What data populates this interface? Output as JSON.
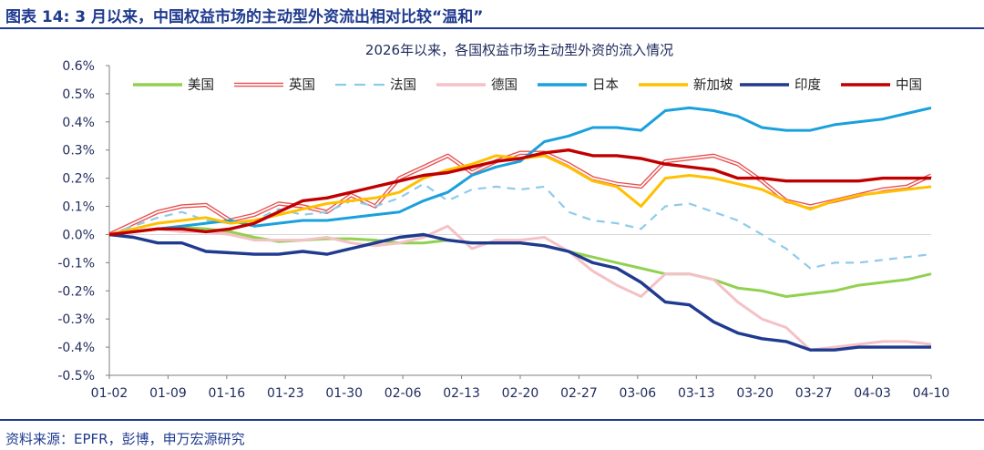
{
  "header": {
    "title": "图表 14: 3 月以来，中国权益市场的主动型外资流出相对比较“温和”"
  },
  "footer": {
    "source": "资料来源：EPFR，彭博，申万宏源研究"
  },
  "chart_data": {
    "type": "line",
    "title": "2026年以来，各国权益市场主动型外资的流入情况",
    "xlabel": "",
    "ylabel": "",
    "ylim": [
      -0.5,
      0.6
    ],
    "yticks": [
      -0.5,
      -0.4,
      -0.3,
      -0.2,
      -0.1,
      0.0,
      0.1,
      0.2,
      0.3,
      0.4,
      0.5,
      0.6
    ],
    "ytick_labels": [
      "-0.5%",
      "-0.4%",
      "-0.3%",
      "-0.2%",
      "-0.1%",
      "0.0%",
      "0.1%",
      "0.2%",
      "0.3%",
      "0.4%",
      "0.5%",
      "0.6%"
    ],
    "x_tick_labels": [
      "01-02",
      "01-09",
      "01-16",
      "01-23",
      "01-30",
      "02-06",
      "02-13",
      "02-20",
      "02-27",
      "03-06",
      "03-13",
      "03-20",
      "03-27",
      "04-03",
      "04-10"
    ],
    "legend_position": "top",
    "series": [
      {
        "name": "美国",
        "color": "#92d050",
        "style": "solid",
        "values": [
          0.0,
          0.01,
          0.02,
          0.025,
          0.02,
          0.01,
          -0.01,
          -0.025,
          -0.02,
          -0.015,
          -0.015,
          -0.02,
          -0.03,
          -0.03,
          -0.02,
          -0.03,
          -0.03,
          -0.03,
          -0.04,
          -0.06,
          -0.08,
          -0.1,
          -0.12,
          -0.14,
          -0.14,
          -0.16,
          -0.19,
          -0.2,
          -0.22,
          -0.21,
          -0.2,
          -0.18,
          -0.17,
          -0.16,
          -0.14
        ]
      },
      {
        "name": "英国",
        "color": "#e8504f",
        "style": "double",
        "values": [
          0.0,
          0.04,
          0.08,
          0.1,
          0.105,
          0.05,
          0.07,
          0.11,
          0.1,
          0.08,
          0.14,
          0.1,
          0.2,
          0.24,
          0.28,
          0.22,
          0.26,
          0.29,
          0.29,
          0.25,
          0.2,
          0.18,
          0.17,
          0.26,
          0.27,
          0.28,
          0.25,
          0.19,
          0.12,
          0.1,
          0.12,
          0.14,
          0.16,
          0.17,
          0.21
        ]
      },
      {
        "name": "法国",
        "color": "#8ecbea",
        "style": "dashed",
        "values": [
          0.0,
          0.03,
          0.06,
          0.08,
          0.05,
          0.04,
          0.05,
          0.09,
          0.07,
          0.08,
          0.12,
          0.1,
          0.13,
          0.18,
          0.12,
          0.16,
          0.17,
          0.16,
          0.17,
          0.08,
          0.05,
          0.04,
          0.02,
          0.1,
          0.11,
          0.08,
          0.05,
          0.0,
          -0.05,
          -0.12,
          -0.1,
          -0.1,
          -0.09,
          -0.08,
          -0.07
        ]
      },
      {
        "name": "德国",
        "color": "#f4c1c6",
        "style": "solid",
        "values": [
          0.0,
          0.01,
          0.02,
          0.01,
          0.01,
          0.0,
          -0.02,
          -0.02,
          -0.02,
          -0.01,
          -0.03,
          -0.04,
          -0.03,
          -0.01,
          0.03,
          -0.05,
          -0.02,
          -0.02,
          -0.01,
          -0.06,
          -0.13,
          -0.18,
          -0.22,
          -0.14,
          -0.14,
          -0.16,
          -0.24,
          -0.3,
          -0.33,
          -0.41,
          -0.4,
          -0.39,
          -0.38,
          -0.38,
          -0.39
        ]
      },
      {
        "name": "日本",
        "color": "#1aa0dc",
        "style": "solid",
        "values": [
          0.0,
          0.01,
          0.02,
          0.03,
          0.04,
          0.05,
          0.03,
          0.04,
          0.05,
          0.05,
          0.06,
          0.07,
          0.08,
          0.12,
          0.15,
          0.21,
          0.24,
          0.26,
          0.33,
          0.35,
          0.38,
          0.38,
          0.37,
          0.44,
          0.45,
          0.44,
          0.42,
          0.38,
          0.37,
          0.37,
          0.39,
          0.4,
          0.41,
          0.43,
          0.45
        ]
      },
      {
        "name": "新加坡",
        "color": "#ffc000",
        "style": "solid",
        "values": [
          0.0,
          0.02,
          0.04,
          0.05,
          0.06,
          0.04,
          0.05,
          0.07,
          0.09,
          0.11,
          0.12,
          0.13,
          0.15,
          0.2,
          0.23,
          0.25,
          0.28,
          0.27,
          0.28,
          0.24,
          0.19,
          0.17,
          0.1,
          0.2,
          0.21,
          0.2,
          0.18,
          0.16,
          0.12,
          0.09,
          0.12,
          0.14,
          0.15,
          0.16,
          0.17
        ]
      },
      {
        "name": "印度",
        "color": "#1f3a8f",
        "style": "solid",
        "values": [
          0.0,
          -0.01,
          -0.03,
          -0.03,
          -0.06,
          -0.065,
          -0.07,
          -0.07,
          -0.06,
          -0.07,
          -0.05,
          -0.03,
          -0.01,
          0.0,
          -0.02,
          -0.03,
          -0.03,
          -0.03,
          -0.04,
          -0.06,
          -0.1,
          -0.12,
          -0.17,
          -0.24,
          -0.25,
          -0.31,
          -0.35,
          -0.37,
          -0.38,
          -0.41,
          -0.41,
          -0.4,
          -0.4,
          -0.4,
          -0.4
        ]
      },
      {
        "name": "中国",
        "color": "#c00000",
        "style": "solid",
        "values": [
          0.0,
          0.01,
          0.02,
          0.02,
          0.01,
          0.02,
          0.04,
          0.08,
          0.12,
          0.13,
          0.15,
          0.17,
          0.19,
          0.21,
          0.22,
          0.24,
          0.26,
          0.27,
          0.29,
          0.3,
          0.28,
          0.28,
          0.27,
          0.25,
          0.24,
          0.23,
          0.2,
          0.2,
          0.19,
          0.19,
          0.19,
          0.19,
          0.2,
          0.2,
          0.2
        ]
      }
    ]
  }
}
